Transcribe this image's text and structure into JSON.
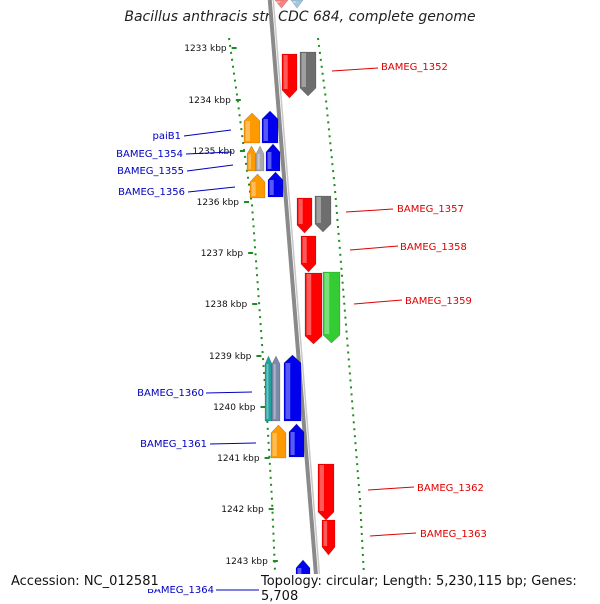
{
  "title": "Bacillus anthracis str. CDC 684, complete genome",
  "footer": {
    "accession": "Accession: NC_012581",
    "stats": "Topology: circular; Length: 5,230,115 bp; Genes: 5,708"
  },
  "colors": {
    "backbone": "#8a8a8a",
    "tick": "#1e8c1e",
    "forward_label": "#e00000",
    "reverse_label": "#0000c0",
    "cds_red": "#ff0000",
    "cds_grey": "#6e6e6e",
    "cds_green": "#33cc33",
    "cds_blue": "#0000ee",
    "cds_orange": "#ff9900",
    "cds_teal": "#22a0a0"
  },
  "ruler": {
    "labels": [
      "1233 kbp",
      "1234 kbp",
      "1235 kbp",
      "1236 kbp",
      "1237 kbp",
      "1238 kbp",
      "1239 kbp",
      "1240 kbp",
      "1241 kbp",
      "1242 kbp",
      "1243 kbp"
    ]
  },
  "genes": {
    "forward": [
      "BAMEG_1352",
      "BAMEG_1357",
      "BAMEG_1358",
      "BAMEG_1359",
      "BAMEG_1362",
      "BAMEG_1363"
    ],
    "reverse": [
      "paiB1",
      "BAMEG_1354",
      "BAMEG_1355",
      "BAMEG_1356",
      "BAMEG_1360",
      "BAMEG_1361",
      "BAMEG_1364"
    ]
  }
}
